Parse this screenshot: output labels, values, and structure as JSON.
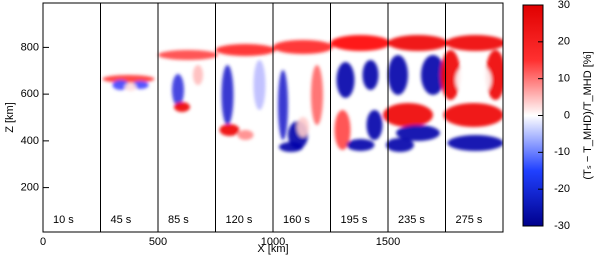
{
  "chart_data": {
    "type": "heatmap",
    "xlabel": "X [km]",
    "ylabel": "Z [km]",
    "xlim": [
      0,
      2000
    ],
    "xticks": [
      0,
      500,
      1000,
      1500
    ],
    "ylim": [
      10,
      990
    ],
    "yticks": [
      200,
      400,
      600,
      800
    ],
    "panels": [
      "10 s",
      "45 s",
      "85 s",
      "120 s",
      "160 s",
      "195 s",
      "235 s",
      "275 s"
    ],
    "colorbar": {
      "label": "(Tₛ − T_MHD)/T_MHD [%]",
      "clim": [
        -30,
        30
      ],
      "cticks": [
        -30,
        -20,
        -10,
        0,
        10,
        20,
        30
      ],
      "colormap": [
        "#00008c",
        "#2040ff",
        "#ffffff",
        "#ff3030",
        "#e00000"
      ]
    }
  }
}
